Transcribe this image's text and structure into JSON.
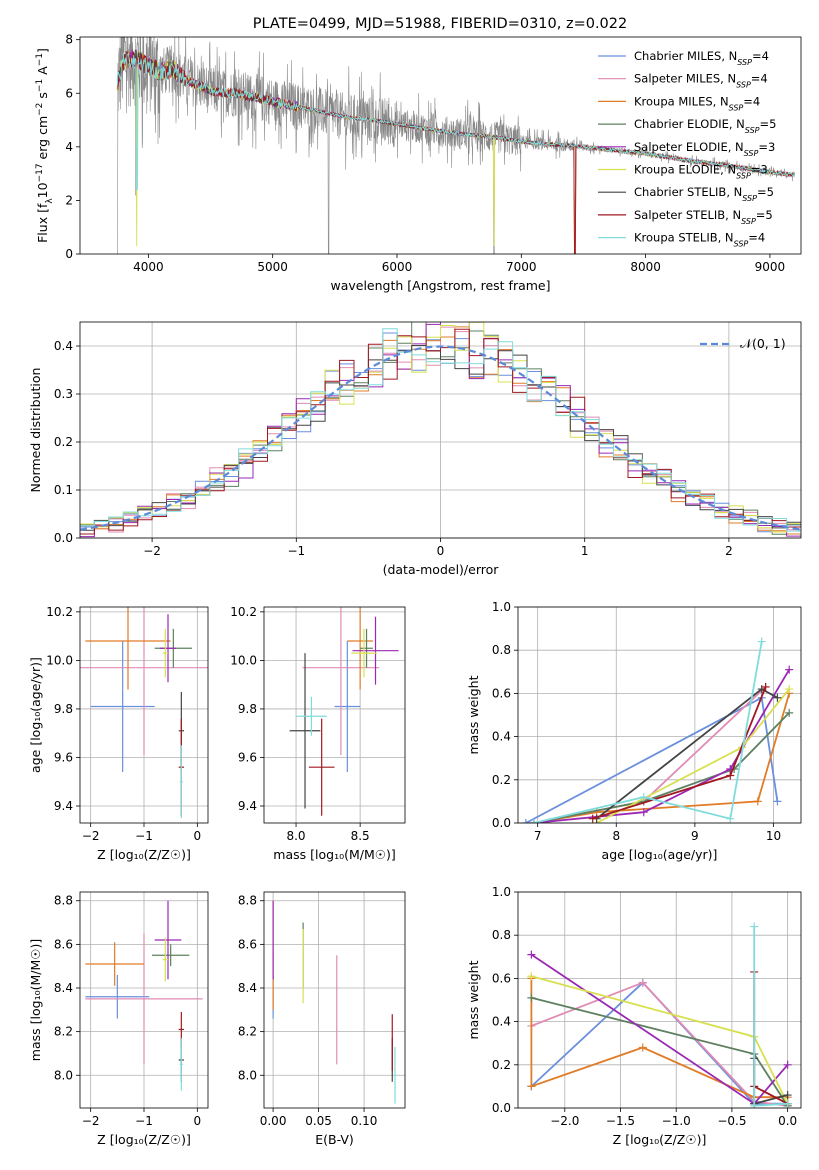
{
  "figure_title": "PLATE=0499, MJD=51988, FIBERID=0310, z=0.022",
  "models": [
    {
      "name": "Chabrier MILES",
      "nssp": "4",
      "color": "#6a8fdc"
    },
    {
      "name": "Salpeter MILES",
      "nssp": "4",
      "color": "#e08cb4"
    },
    {
      "name": "Kroupa MILES",
      "nssp": "4",
      "color": "#e07c28"
    },
    {
      "name": "Chabrier ELODIE",
      "nssp": "5",
      "color": "#5e8060"
    },
    {
      "name": "Salpeter ELODIE",
      "nssp": "3",
      "color": "#9a28b4"
    },
    {
      "name": "Kroupa ELODIE",
      "nssp": "3",
      "color": "#d8e050"
    },
    {
      "name": "Chabrier STELIB",
      "nssp": "5",
      "color": "#444444"
    },
    {
      "name": "Salpeter STELIB",
      "nssp": "5",
      "color": "#a01820"
    },
    {
      "name": "Kroupa STELIB",
      "nssp": "4",
      "color": "#80dcdc"
    }
  ],
  "data_color": "#888888",
  "normal_color": "#5b8bd8",
  "chart_data": [
    {
      "id": "spectrum",
      "type": "line",
      "title": "PLATE=0499, MJD=51988, FIBERID=0310, z=0.022",
      "xlabel": "wavelength [Angstrom, rest frame]",
      "ylabel_html": "Flux [f<tspan baseline-shift='sub' font-size='9'>λ</tspan>10<tspan baseline-shift='super' font-size='9'>−17</tspan> erg cm<tspan baseline-shift='super' font-size='9'>−2</tspan> s<tspan baseline-shift='super' font-size='9'>−1</tspan> A<tspan baseline-shift='super' font-size='9'>−1</tspan>]",
      "xlim": [
        3450,
        9250
      ],
      "ylim": [
        0,
        8.1
      ],
      "xticks": [
        4000,
        5000,
        6000,
        7000,
        8000,
        9000
      ],
      "yticks": [
        0,
        2,
        4,
        6,
        8
      ],
      "grid": false,
      "legend": "top-right",
      "continuum": {
        "x": [
          3750,
          3800,
          3900,
          4000,
          4100,
          4200,
          4300,
          4400,
          4500,
          4600,
          4700,
          4800,
          4900,
          5000,
          5200,
          5400,
          5600,
          5800,
          6000,
          6200,
          6400,
          6600,
          6800,
          7000,
          7200,
          7400,
          7600,
          7800,
          8000,
          8200,
          8400,
          8600,
          8800,
          9000,
          9200
        ],
        "y": [
          6.4,
          7.2,
          7.3,
          7.0,
          6.8,
          6.9,
          6.5,
          6.3,
          6.1,
          6.0,
          6.0,
          5.9,
          5.8,
          5.7,
          5.5,
          5.3,
          5.1,
          5.0,
          4.85,
          4.7,
          4.55,
          4.45,
          4.35,
          4.2,
          4.1,
          4.05,
          3.95,
          3.85,
          3.75,
          3.6,
          3.45,
          3.35,
          3.2,
          3.05,
          2.95
        ]
      },
      "dips": [
        {
          "x": 3750,
          "y": 0
        },
        {
          "x": 3900,
          "y": 2.2
        },
        {
          "x": 5450,
          "y": 0
        },
        {
          "x": 6780,
          "y": 0
        },
        {
          "x": 7430,
          "y": 0
        }
      ]
    },
    {
      "id": "residuals",
      "type": "histogram",
      "xlabel": "(data-model)/error",
      "ylabel": "Normed distribution",
      "xlim": [
        -2.5,
        2.5
      ],
      "ylim": [
        0,
        0.45
      ],
      "xticks": [
        -2,
        -1,
        0,
        1,
        2
      ],
      "yticks": [
        0.0,
        0.1,
        0.2,
        0.3,
        0.4
      ],
      "grid": true,
      "legend": "top-right",
      "reference_label": "𝒩(0, 1)",
      "bin_width": 0.1
    },
    {
      "id": "age-vs-Z",
      "type": "errorbar",
      "xlabel": "Z [log₁₀(Z/Z☉)]",
      "ylabel": "age  [log₁₀(age/yr)]",
      "xlim": [
        -2.2,
        0.2
      ],
      "ylim": [
        9.33,
        10.22
      ],
      "xticks": [
        -2,
        -1,
        0
      ],
      "yticks": [
        9.4,
        9.6,
        9.8,
        10.0,
        10.2
      ],
      "grid": true,
      "points": [
        {
          "m": 0,
          "x": -1.4,
          "xerr": 0.6,
          "y": 9.81,
          "yerr": 0.27
        },
        {
          "m": 1,
          "x": -1.0,
          "xerr": 1.2,
          "y": 9.97,
          "yerr": 0.36
        },
        {
          "m": 2,
          "x": -1.3,
          "xerr": 0.8,
          "y": 10.08,
          "yerr": 0.2
        },
        {
          "m": 3,
          "x": -0.45,
          "xerr": 0.35,
          "y": 10.05,
          "yerr": 0.08
        },
        {
          "m": 4,
          "x": -0.55,
          "xerr": 0.15,
          "y": 10.05,
          "yerr": 0.14
        },
        {
          "m": 5,
          "x": -0.6,
          "xerr": 0.05,
          "y": 10.03,
          "yerr": 0.1
        },
        {
          "m": 6,
          "x": -0.3,
          "xerr": 0.05,
          "y": 9.71,
          "yerr": 0.16
        },
        {
          "m": 7,
          "x": -0.3,
          "xerr": 0.05,
          "y": 9.56,
          "yerr": 0.2
        },
        {
          "m": 8,
          "x": -0.3,
          "xerr": 0.03,
          "y": 9.5,
          "yerr": 0.15
        }
      ]
    },
    {
      "id": "age-vs-mass",
      "type": "errorbar",
      "xlabel": "mass [log₁₀(M/M☉)]",
      "ylabel": "",
      "xlim": [
        7.75,
        8.85
      ],
      "ylim": [
        9.33,
        10.22
      ],
      "xticks": [
        8.0,
        8.5
      ],
      "yticks": [
        9.4,
        9.6,
        9.8,
        10.0,
        10.2
      ],
      "grid": true,
      "points": [
        {
          "m": 0,
          "x": 8.4,
          "xerr": 0.1,
          "y": 9.81,
          "yerr": 0.27
        },
        {
          "m": 1,
          "x": 8.35,
          "xerr": 0.3,
          "y": 9.97,
          "yerr": 0.36
        },
        {
          "m": 2,
          "x": 8.5,
          "xerr": 0.1,
          "y": 10.08,
          "yerr": 0.2
        },
        {
          "m": 3,
          "x": 8.55,
          "xerr": 0.05,
          "y": 10.05,
          "yerr": 0.08
        },
        {
          "m": 4,
          "x": 8.62,
          "xerr": 0.18,
          "y": 10.04,
          "yerr": 0.14
        },
        {
          "m": 5,
          "x": 8.53,
          "xerr": 0.1,
          "y": 10.03,
          "yerr": 0.1
        },
        {
          "m": 6,
          "x": 8.07,
          "xerr": 0.12,
          "y": 9.71,
          "yerr": 0.32
        },
        {
          "m": 7,
          "x": 8.2,
          "xerr": 0.1,
          "y": 9.56,
          "yerr": 0.2
        },
        {
          "m": 8,
          "x": 8.12,
          "xerr": 0.12,
          "y": 9.77,
          "yerr": 0.08
        }
      ]
    },
    {
      "id": "weight-vs-age",
      "type": "line",
      "xlabel": "age  [log₁₀(age/yr)]",
      "ylabel": "mass weight",
      "xlim": [
        6.75,
        10.35
      ],
      "ylim": [
        0,
        1.0
      ],
      "xticks": [
        7,
        8,
        9,
        10
      ],
      "yticks": [
        0.0,
        0.2,
        0.4,
        0.6,
        0.8,
        1.0
      ],
      "grid": true,
      "series": [
        {
          "m": 0,
          "x": [
            6.85,
            9.85,
            10.05
          ],
          "y": [
            0.0,
            0.58,
            0.1
          ]
        },
        {
          "m": 1,
          "x": [
            6.95,
            8.35,
            9.9
          ],
          "y": [
            0.0,
            0.1,
            0.63
          ]
        },
        {
          "m": 2,
          "x": [
            6.95,
            7.75,
            9.8,
            10.2
          ],
          "y": [
            0.0,
            0.05,
            0.1,
            0.6
          ]
        },
        {
          "m": 3,
          "x": [
            6.95,
            8.35,
            9.5,
            10.2
          ],
          "y": [
            0.0,
            0.1,
            0.25,
            0.51
          ]
        },
        {
          "m": 4,
          "x": [
            6.95,
            8.35,
            9.45,
            10.2
          ],
          "y": [
            0.0,
            0.05,
            0.25,
            0.71
          ]
        },
        {
          "m": 5,
          "x": [
            7.75,
            9.6,
            10.2
          ],
          "y": [
            0.0,
            0.35,
            0.62
          ]
        },
        {
          "m": 6,
          "x": [
            7.75,
            9.85,
            10.05
          ],
          "y": [
            0.02,
            0.62,
            0.58
          ]
        },
        {
          "m": 7,
          "x": [
            7.7,
            9.45,
            9.9
          ],
          "y": [
            0.02,
            0.22,
            0.63
          ]
        },
        {
          "m": 8,
          "x": [
            6.95,
            8.35,
            9.45,
            9.85
          ],
          "y": [
            0.0,
            0.12,
            0.02,
            0.84
          ]
        }
      ]
    },
    {
      "id": "mass-vs-Z",
      "type": "errorbar",
      "xlabel": "Z [log₁₀(Z/Z☉)]",
      "ylabel": "mass [log₁₀(M/M☉)]",
      "xlim": [
        -2.2,
        0.2
      ],
      "ylim": [
        7.85,
        8.84
      ],
      "xticks": [
        -2,
        -1,
        0
      ],
      "yticks": [
        8.0,
        8.2,
        8.4,
        8.6,
        8.8
      ],
      "grid": true,
      "points": [
        {
          "m": 0,
          "x": -1.5,
          "xerr": 0.6,
          "y": 8.36,
          "yerr": 0.1
        },
        {
          "m": 1,
          "x": -1.0,
          "xerr": 1.1,
          "y": 8.35,
          "yerr": 0.3
        },
        {
          "m": 2,
          "x": -1.55,
          "xerr": 0.55,
          "y": 8.51,
          "yerr": 0.1
        },
        {
          "m": 3,
          "x": -0.5,
          "xerr": 0.35,
          "y": 8.55,
          "yerr": 0.05
        },
        {
          "m": 4,
          "x": -0.55,
          "xerr": 0.25,
          "y": 8.62,
          "yerr": 0.18
        },
        {
          "m": 5,
          "x": -0.6,
          "xerr": 0.05,
          "y": 8.53,
          "yerr": 0.1
        },
        {
          "m": 6,
          "x": -0.3,
          "xerr": 0.05,
          "y": 8.07,
          "yerr": 0.1
        },
        {
          "m": 7,
          "x": -0.3,
          "xerr": 0.05,
          "y": 8.21,
          "yerr": 0.08
        },
        {
          "m": 8,
          "x": -0.3,
          "xerr": 0.03,
          "y": 8.05,
          "yerr": 0.12
        }
      ]
    },
    {
      "id": "mass-vs-ebv",
      "type": "errorbar",
      "xlabel": "E(B-V)",
      "ylabel": "",
      "xlim": [
        -0.01,
        0.145
      ],
      "ylim": [
        7.85,
        8.84
      ],
      "xticks": [
        0.0,
        0.05,
        0.1
      ],
      "yticks": [
        8.0,
        8.2,
        8.4,
        8.6,
        8.8
      ],
      "grid": true,
      "points": [
        {
          "m": 0,
          "x": 0.0,
          "xerr": 0,
          "y": 8.36,
          "yerr": 0.1
        },
        {
          "m": 1,
          "x": 0.07,
          "xerr": 0,
          "y": 8.3,
          "yerr": 0.25
        },
        {
          "m": 2,
          "x": 0.0,
          "xerr": 0,
          "y": 8.55,
          "yerr": 0.25
        },
        {
          "m": 3,
          "x": 0.033,
          "xerr": 0,
          "y": 8.55,
          "yerr": 0.15
        },
        {
          "m": 4,
          "x": 0.0,
          "xerr": 0,
          "y": 8.62,
          "yerr": 0.18
        },
        {
          "m": 5,
          "x": 0.033,
          "xerr": 0,
          "y": 8.5,
          "yerr": 0.17
        },
        {
          "m": 6,
          "x": 0.131,
          "xerr": 0,
          "y": 8.07,
          "yerr": 0.1
        },
        {
          "m": 7,
          "x": 0.131,
          "xerr": 0,
          "y": 8.15,
          "yerr": 0.13
        },
        {
          "m": 8,
          "x": 0.134,
          "xerr": 0,
          "y": 8.0,
          "yerr": 0.13
        }
      ]
    },
    {
      "id": "weight-vs-Z",
      "type": "line",
      "xlabel": "Z [log₁₀(Z/Z☉)]",
      "ylabel": "mass weight",
      "xlim": [
        -2.42,
        0.12
      ],
      "ylim": [
        0,
        1.0
      ],
      "xticks": [
        -2.0,
        -1.5,
        -1.0,
        -0.5,
        0.0
      ],
      "yticks": [
        0.0,
        0.2,
        0.4,
        0.6,
        0.8,
        1.0
      ],
      "grid": true,
      "series": [
        {
          "m": 0,
          "x": [
            -2.3,
            -1.3,
            -0.3,
            0.0
          ],
          "y": [
            0.1,
            0.58,
            0.02,
            0.02
          ]
        },
        {
          "m": 1,
          "x": [
            -2.3,
            -1.3,
            -0.3,
            0.0
          ],
          "y": [
            0.38,
            0.58,
            0.03,
            0.01
          ]
        },
        {
          "m": 2,
          "x": [
            -2.3,
            -2.3,
            -1.3,
            -0.3,
            0.0
          ],
          "y": [
            0.6,
            0.1,
            0.28,
            0.05,
            0.05
          ]
        },
        {
          "m": 3,
          "x": [
            -2.3,
            -0.3,
            0.0
          ],
          "y": [
            0.51,
            0.25,
            0.01
          ]
        },
        {
          "m": 4,
          "x": [
            -2.3,
            -0.3,
            0.0
          ],
          "y": [
            0.71,
            0.02,
            0.2
          ]
        },
        {
          "m": 5,
          "x": [
            -2.3,
            -0.3,
            0.0
          ],
          "y": [
            0.61,
            0.33,
            0.02
          ]
        },
        {
          "m": 6,
          "x": [
            -0.3,
            -0.3,
            0.0
          ],
          "y": [
            0.23,
            0.02,
            0.06
          ]
        },
        {
          "m": 7,
          "x": [
            -0.3,
            -0.3,
            0.0
          ],
          "y": [
            0.63,
            0.1,
            0.02
          ]
        },
        {
          "m": 8,
          "x": [
            -0.3,
            -0.3,
            0.0
          ],
          "y": [
            0.84,
            0.01,
            0.02
          ]
        }
      ]
    }
  ]
}
